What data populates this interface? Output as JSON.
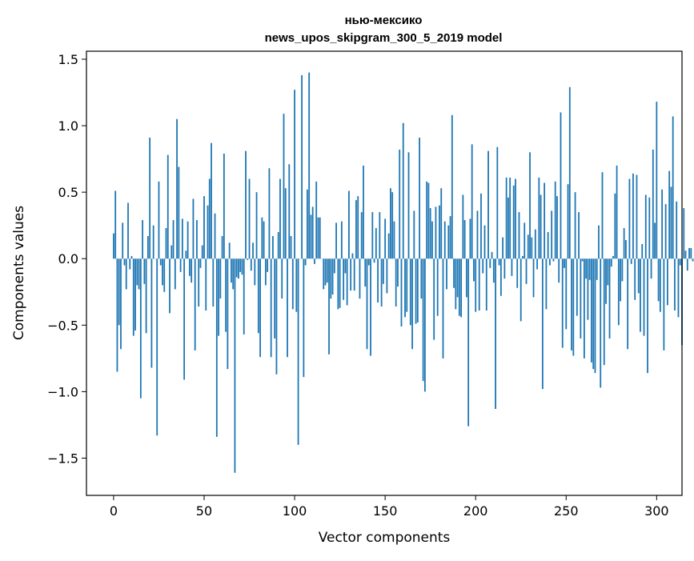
{
  "chart_data": {
    "type": "bar",
    "title": "нью-мексико",
    "subtitle": "news_upos_skipgram_300_5_2019 model",
    "xlabel": "Vector components",
    "ylabel": "Components values",
    "xlim": [
      -15,
      314
    ],
    "ylim": [
      -1.78,
      1.56
    ],
    "xticks": [
      0,
      50,
      100,
      150,
      200,
      250,
      300
    ],
    "yticks": [
      -1.5,
      -1.0,
      -0.5,
      0.0,
      0.5,
      1.0,
      1.5
    ],
    "xtick_labels": [
      "0",
      "50",
      "100",
      "150",
      "200",
      "250",
      "300"
    ],
    "ytick_labels": [
      "−1.5",
      "−1.0",
      "−0.5",
      "0.0",
      "0.5",
      "1.0",
      "1.5"
    ],
    "bar_color": "#1f77b4",
    "grid": false,
    "legend": "none",
    "values": [
      0.19,
      0.51,
      -0.85,
      -0.5,
      -0.68,
      0.27,
      -0.05,
      -0.23,
      0.42,
      -0.08,
      0.02,
      -0.58,
      -0.54,
      -0.2,
      -0.23,
      -1.05,
      0.29,
      -0.19,
      -0.56,
      0.17,
      0.91,
      -0.82,
      0.25,
      0.0,
      -1.33,
      0.58,
      -0.05,
      -0.2,
      -0.25,
      0.23,
      0.78,
      -0.41,
      0.1,
      0.29,
      -0.23,
      1.05,
      0.69,
      -0.1,
      0.3,
      -0.91,
      0.06,
      0.28,
      -0.13,
      -0.18,
      0.45,
      -0.69,
      0.29,
      -0.36,
      -0.07,
      0.1,
      0.47,
      -0.39,
      0.4,
      0.6,
      0.87,
      -0.36,
      0.34,
      -1.34,
      -0.58,
      -0.3,
      0.17,
      0.79,
      -0.55,
      -0.83,
      0.12,
      -0.18,
      -0.23,
      -1.61,
      -0.14,
      -0.15,
      -0.1,
      -0.12,
      -0.57,
      0.81,
      -0.01,
      0.6,
      -0.09,
      0.12,
      -0.2,
      0.5,
      -0.56,
      -0.74,
      0.31,
      0.28,
      -0.2,
      -0.1,
      0.68,
      -0.74,
      0.17,
      -0.6,
      -0.87,
      0.2,
      0.6,
      -0.3,
      1.09,
      0.53,
      -0.74,
      0.71,
      0.17,
      -0.38,
      1.27,
      -0.4,
      -1.4,
      0.0,
      1.38,
      -0.89,
      -0.05,
      0.52,
      1.4,
      0.33,
      0.39,
      -0.04,
      0.58,
      0.31,
      0.31,
      0.0,
      -0.23,
      -0.2,
      -0.18,
      -0.72,
      -0.3,
      -0.27,
      -0.11,
      0.27,
      -0.38,
      -0.37,
      0.28,
      -0.31,
      -0.11,
      -0.35,
      0.51,
      -0.24,
      0.04,
      -0.24,
      0.44,
      0.47,
      -0.3,
      0.35,
      0.7,
      -0.21,
      -0.68,
      -0.05,
      -0.73,
      0.35,
      -0.03,
      0.23,
      -0.33,
      0.35,
      -0.36,
      -0.19,
      0.3,
      -0.26,
      0.19,
      0.53,
      0.5,
      0.28,
      -0.36,
      -0.21,
      0.82,
      -0.51,
      1.02,
      -0.44,
      -0.4,
      0.8,
      -0.5,
      -0.68,
      0.36,
      -0.49,
      -0.48,
      0.91,
      -0.3,
      -0.92,
      -1.0,
      0.58,
      0.57,
      0.38,
      0.28,
      -0.61,
      0.39,
      -0.43,
      0.4,
      0.53,
      -0.75,
      0.28,
      -0.23,
      0.25,
      0.32,
      1.08,
      -0.22,
      -0.38,
      -0.29,
      -0.43,
      -0.44,
      0.48,
      0.29,
      -0.29,
      -1.26,
      0.3,
      0.86,
      -0.17,
      -0.4,
      0.36,
      -0.39,
      0.49,
      -0.11,
      0.25,
      -0.39,
      0.81,
      -0.07,
      0.05,
      -0.18,
      -1.13,
      0.84,
      -0.05,
      -0.28,
      0.16,
      -0.15,
      0.61,
      0.46,
      0.61,
      -0.13,
      0.55,
      0.6,
      -0.22,
      0.35,
      -0.47,
      0.02,
      0.27,
      -0.19,
      0.18,
      0.8,
      0.16,
      -0.29,
      0.22,
      -0.08,
      0.61,
      0.48,
      -0.98,
      0.57,
      -0.38,
      0.2,
      -0.05,
      0.36,
      -0.02,
      0.58,
      0.47,
      -0.18,
      1.1,
      -0.67,
      -0.07,
      -0.53,
      0.56,
      1.29,
      -0.69,
      -0.73,
      0.5,
      -0.43,
      0.35,
      -0.6,
      -0.02,
      -0.75,
      -0.15,
      -0.46,
      -0.16,
      -0.78,
      -0.83,
      -0.86,
      -0.16,
      0.25,
      -0.97,
      0.65,
      -0.8,
      -0.34,
      -0.2,
      -0.6,
      -0.06,
      0.02,
      0.49,
      0.7,
      -0.5,
      -0.32,
      -0.17,
      0.23,
      0.14,
      -0.68,
      0.6,
      -0.04,
      0.64,
      -0.31,
      0.63,
      -0.26,
      -0.55,
      0.11,
      -0.58,
      0.48,
      -0.86,
      0.46,
      -0.15,
      0.82,
      0.27,
      1.18,
      -0.32,
      -0.4,
      0.52,
      -0.69,
      0.41,
      -0.35,
      0.66,
      0.54,
      1.07,
      -0.39,
      0.43,
      -0.44,
      -0.05,
      -0.65,
      0.38,
      0.06,
      -0.09,
      0.08,
      0.08,
      -0.02
    ]
  }
}
